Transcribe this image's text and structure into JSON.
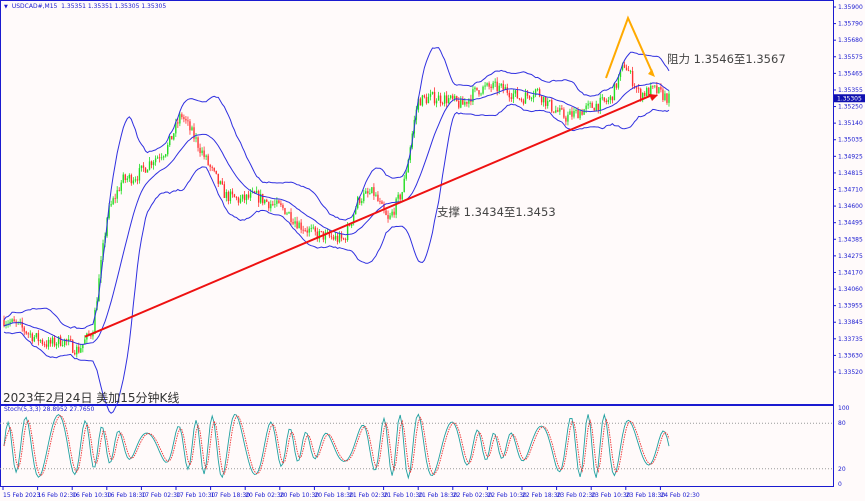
{
  "header": {
    "symbol": "USDCAD#,M15",
    "ohlc": "1.35351 1.35351 1.35305 1.35305"
  },
  "title": "2023年2月24日 美加15分钟K线",
  "annotations": {
    "support": "支撑 1.3434至1.3453",
    "resistance": "阻力 1.3546至1.3567"
  },
  "stoch": {
    "label": "Stoch(5,3,3) 28.8952 27.7650",
    "levels": [
      "100",
      "80",
      "20",
      "0"
    ]
  },
  "colors": {
    "background": "#fffafa",
    "axis": "#1a1ad0",
    "bull": "#22dd22",
    "bear": "#ff3030",
    "bands": "#3030e0",
    "support_line": "#ee1111",
    "resistance_line": "#ffaa00",
    "stoch_main": "#20a0a0",
    "stoch_signal": "#ee3030"
  },
  "chart_data": {
    "type": "candlestick",
    "timeframe": "M15",
    "ylim": [
      1.3352,
      1.359
    ],
    "y_ticks": [
      "1.35900",
      "1.35790",
      "1.35680",
      "1.35575",
      "1.35465",
      "1.35355",
      "1.35250",
      "1.35140",
      "1.35035",
      "1.34925",
      "1.34815",
      "1.34710",
      "1.34600",
      "1.34495",
      "1.34385",
      "1.34275",
      "1.34170",
      "1.34060",
      "1.33955",
      "1.33845",
      "1.33735",
      "1.33630",
      "1.33520"
    ],
    "current_price": "1.35305",
    "x_ticks": [
      "15 Feb 2023",
      "16 Feb 02:30",
      "16 Feb 10:30",
      "16 Feb 18:30",
      "17 Feb 02:30",
      "17 Feb 10:30",
      "17 Feb 18:30",
      "20 Feb 02:30",
      "20 Feb 10:30",
      "20 Feb 18:30",
      "21 Feb 02:30",
      "21 Feb 10:30",
      "21 Feb 18:30",
      "22 Feb 02:30",
      "22 Feb 10:30",
      "22 Feb 18:30",
      "23 Feb 02:30",
      "23 Feb 10:30",
      "23 Feb 18:30",
      "24 Feb 02:30"
    ],
    "price_path": [
      1.3386,
      1.3382,
      1.3375,
      1.337,
      1.3373,
      1.3366,
      1.3379,
      1.3455,
      1.3477,
      1.348,
      1.349,
      1.3497,
      1.352,
      1.3503,
      1.3484,
      1.3467,
      1.3464,
      1.3467,
      1.3462,
      1.3458,
      1.3448,
      1.3442,
      1.344,
      1.3438,
      1.3465,
      1.3469,
      1.345,
      1.3471,
      1.3529,
      1.3531,
      1.353,
      1.3526,
      1.3536,
      1.3538,
      1.3536,
      1.353,
      1.3536,
      1.3525,
      1.3518,
      1.3522,
      1.3526,
      1.3529,
      1.3553,
      1.3533,
      1.3536,
      1.353
    ],
    "support_trendline": {
      "from": 1.3375,
      "to": 1.3532
    },
    "stoch_levels": [
      80,
      20
    ]
  }
}
